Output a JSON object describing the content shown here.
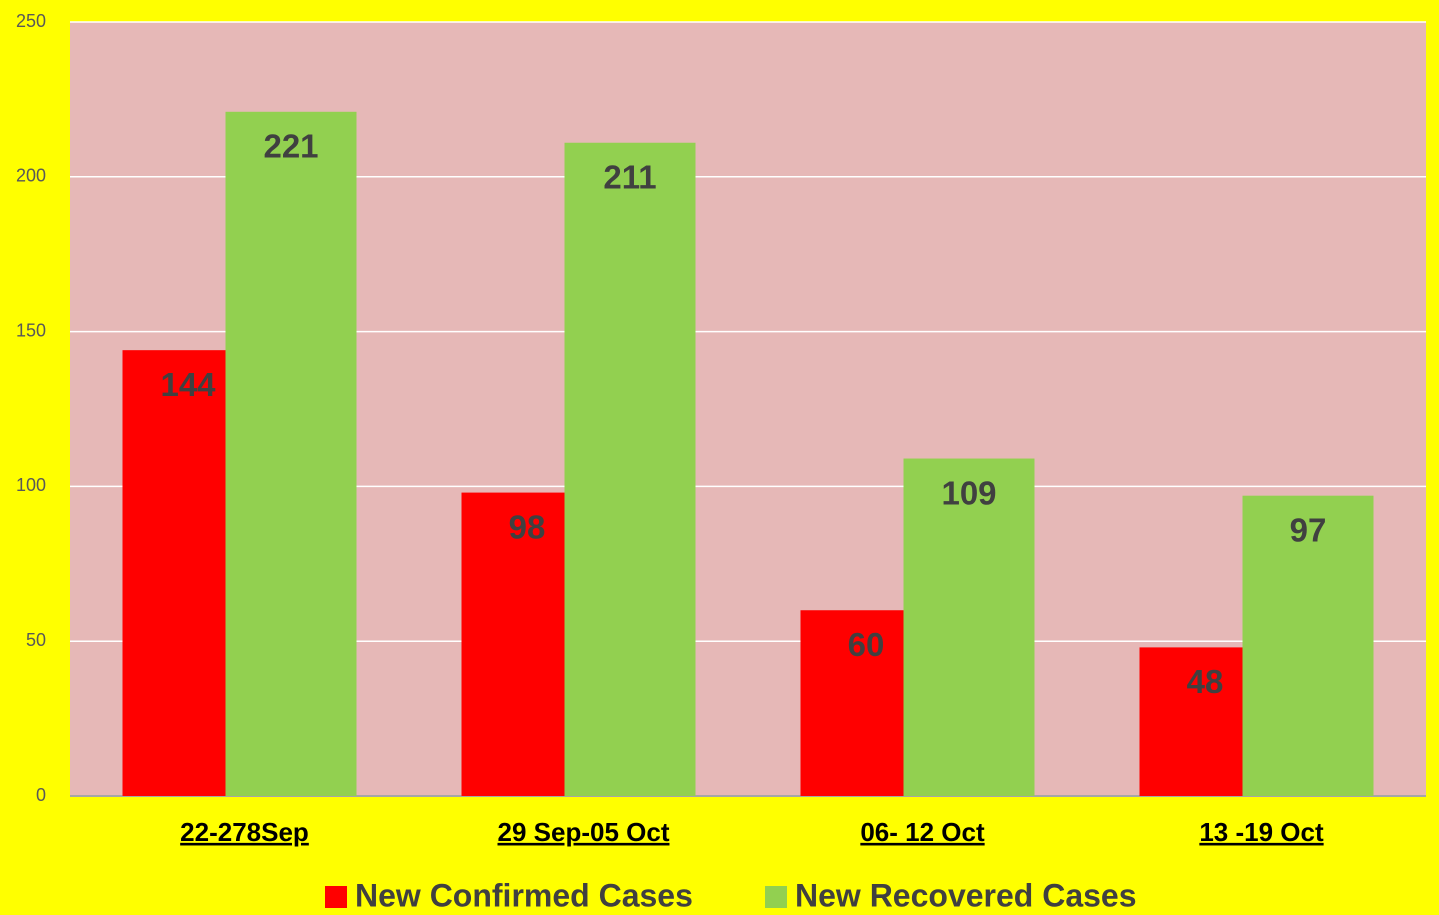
{
  "chart_data": {
    "type": "bar",
    "categories": [
      "22-278Sep",
      "29 Sep-05 Oct",
      "06- 12 Oct",
      "13 -19 Oct"
    ],
    "series": [
      {
        "name": "New Confirmed Cases",
        "color": "#ff0000",
        "values": [
          144,
          98,
          60,
          48
        ]
      },
      {
        "name": "New Recovered Cases",
        "color": "#92d050",
        "values": [
          221,
          211,
          109,
          97
        ]
      }
    ],
    "ylim": [
      0,
      250
    ],
    "yticks": [
      0,
      50,
      100,
      150,
      200,
      250
    ],
    "grid": true,
    "legend": "bottom"
  }
}
